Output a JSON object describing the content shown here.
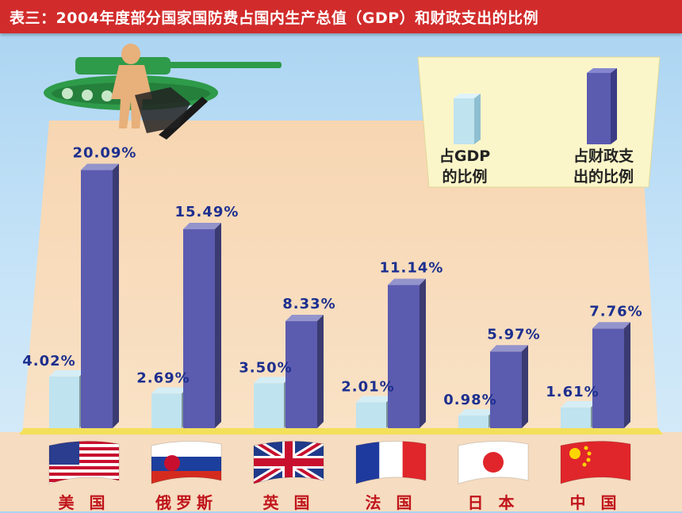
{
  "title": "表三：2004年度部分国家国防费占国内生产总值（GDP）和财政支出的比例",
  "chart_data": {
    "type": "bar",
    "categories": [
      "美 国",
      "俄罗斯",
      "英 国",
      "法 国",
      "日 本",
      "中 国"
    ],
    "series": [
      {
        "name": "占GDP的比例",
        "values": [
          4.02,
          2.69,
          3.5,
          2.01,
          0.98,
          1.61
        ],
        "labels": [
          "4.02%",
          "2.69%",
          "3.50%",
          "2.01%",
          "0.98%",
          "1.61%"
        ],
        "color": "#bfe3ef"
      },
      {
        "name": "占财政支出的比例",
        "values": [
          20.09,
          15.49,
          8.33,
          11.14,
          5.97,
          7.76
        ],
        "labels": [
          "20.09%",
          "15.49%",
          "8.33%",
          "11.14%",
          "5.97%",
          "7.76%"
        ],
        "color": "#5b5bb0"
      }
    ],
    "legend": {
      "placement": "top-right",
      "gdp_lines": [
        "占GDP",
        "的比例"
      ],
      "fiscal_lines": [
        "占财政支",
        "出的比例"
      ]
    },
    "grid": false
  },
  "flags": [
    "us-flag",
    "russia-flag",
    "uk-flag",
    "france-flag",
    "japan-flag",
    "china-flag"
  ],
  "colors": {
    "title_bg": "#d22b2b",
    "panel": "#f7d7b5",
    "floor": "#f3e05a",
    "label_blue": "#1d2f8f",
    "country_red": "#c0141b"
  }
}
